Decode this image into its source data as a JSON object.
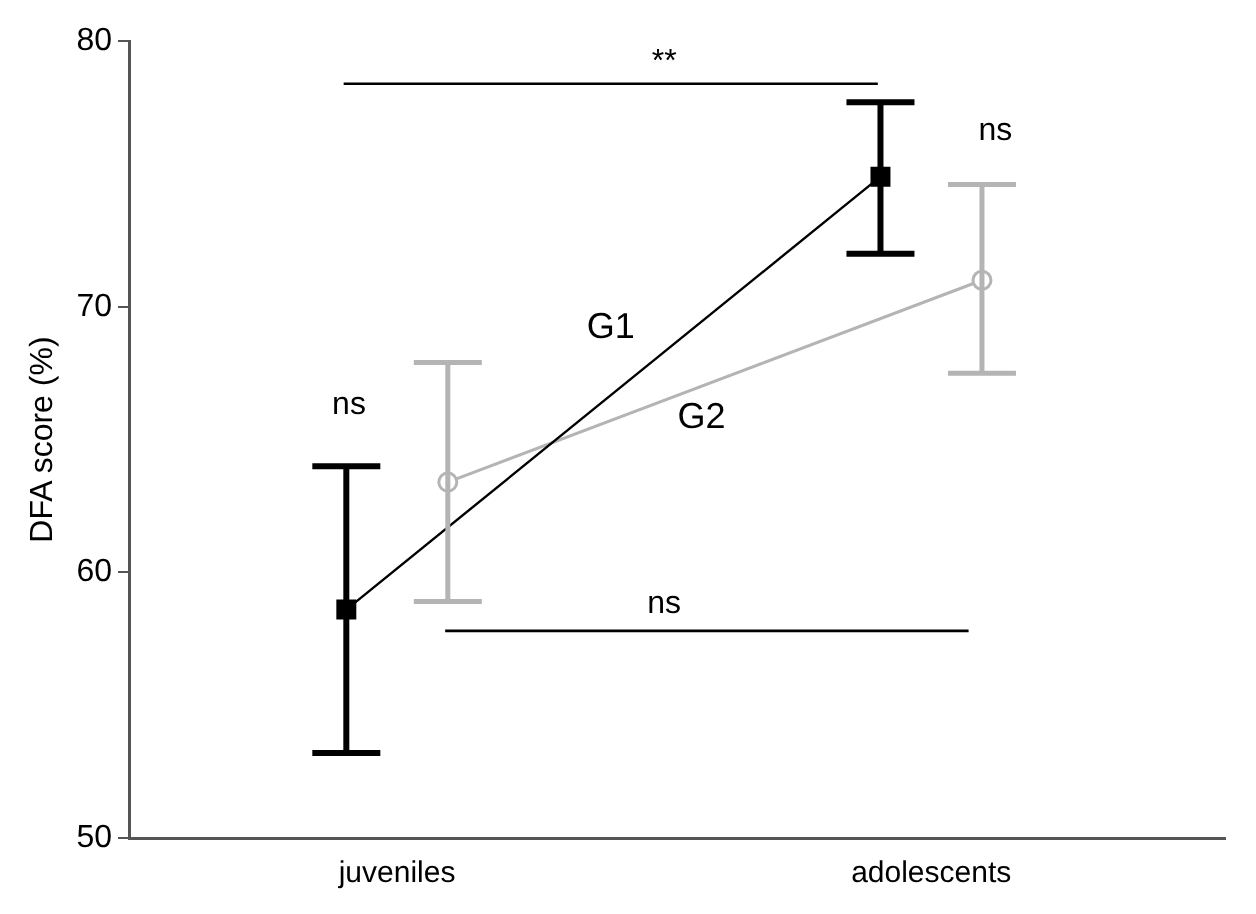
{
  "chart_data": {
    "type": "line",
    "ylabel": "DFA score (%)",
    "categories": [
      "juveniles",
      "adolescents"
    ],
    "series": [
      {
        "name": "G1",
        "color": "#000000",
        "marker": "square",
        "values": [
          58.6,
          74.9
        ],
        "errors": [
          [
            53.2,
            64.0
          ],
          [
            72.0,
            77.7
          ]
        ]
      },
      {
        "name": "G2",
        "color": "#b4b4b4",
        "marker": "circle",
        "values": [
          63.4,
          71.0
        ],
        "errors": [
          [
            58.9,
            67.9
          ],
          [
            67.5,
            74.6
          ]
        ]
      }
    ],
    "ylim": [
      50,
      80
    ],
    "yticks": [
      50,
      60,
      70,
      80
    ],
    "grid": false,
    "legend": false,
    "annotations": [
      "**",
      "ns",
      "ns",
      "ns"
    ]
  }
}
